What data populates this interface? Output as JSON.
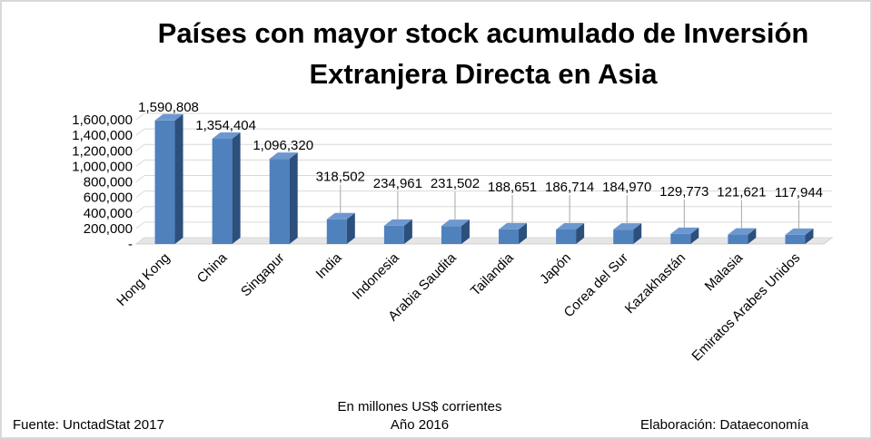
{
  "chart_data": {
    "type": "bar",
    "title_line1": "Países con mayor stock acumulado de Inversión",
    "title_line2": "Extranjera Directa en Asia",
    "categories": [
      "Hong Kong",
      "China",
      "Singapur",
      "India",
      "Indonesia",
      "Arabia Saudita",
      "Tailandia",
      "Japón",
      "Corea del Sur",
      "Kazakhastán",
      "Malasia",
      "Emiratos Arabes Unidos"
    ],
    "values": [
      1590808,
      1354404,
      1096320,
      318502,
      234961,
      231502,
      188651,
      186714,
      184970,
      129773,
      121621,
      117944
    ],
    "value_labels": [
      "1,590,808",
      "1,354,404",
      "1,096,320",
      "318,502",
      "234,961",
      "231,502",
      "188,651",
      "186,714",
      "184,970",
      "129,773",
      "121,621",
      "117,944"
    ],
    "y_ticks": [
      0,
      200000,
      400000,
      600000,
      800000,
      1000000,
      1200000,
      1400000,
      1600000
    ],
    "y_tick_labels": [
      "-",
      "200,000",
      "400,000",
      "600,000",
      "800,000",
      "1,000,000",
      "1,200,000",
      "1,400,000",
      "1,600,000"
    ],
    "ylim": [
      0,
      1600000
    ],
    "grid": true,
    "bar_color": "#4f81bd",
    "bar_side_color": "#2c4f7c",
    "bar_top_color": "#6d98cf",
    "xlabel_line1": "En millones US$ corrientes",
    "xlabel_line2": "Año 2016"
  },
  "footer": {
    "source": "Fuente: UnctadStat 2017",
    "credit": "Elaboración: Dataeconomía"
  }
}
